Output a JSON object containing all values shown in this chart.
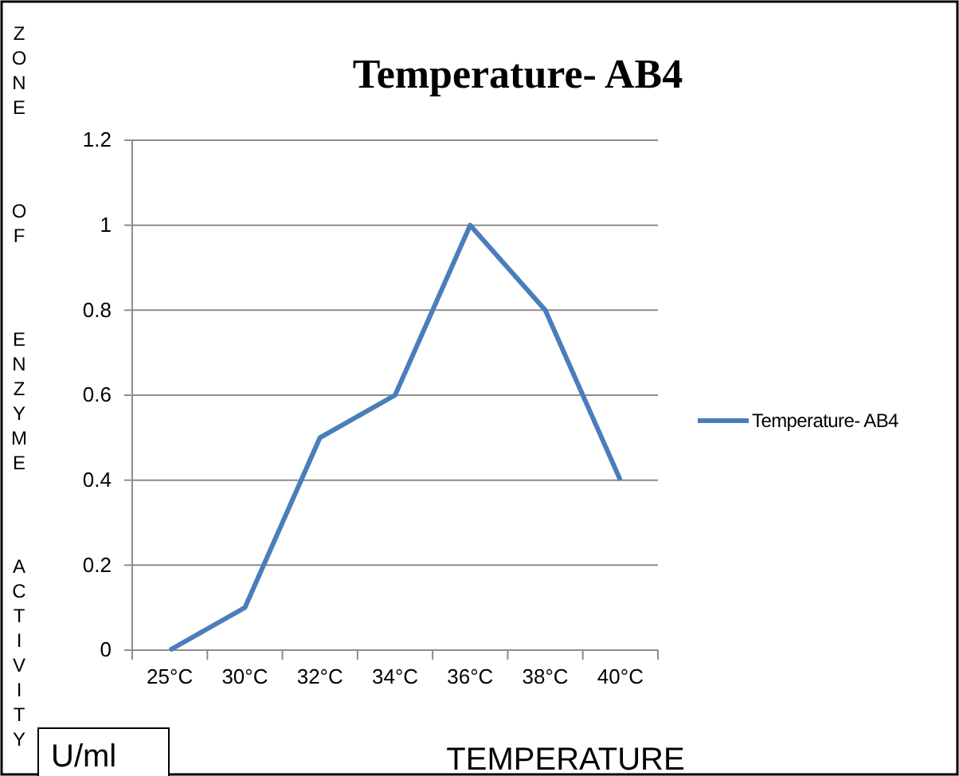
{
  "chart_data": {
    "type": "line",
    "title": "Temperature- AB4",
    "categories": [
      "25°C",
      "30°C",
      "32°C",
      "34°C",
      "36°C",
      "38°C",
      "40°C"
    ],
    "series": [
      {
        "name": "Temperature- AB4",
        "color": "#4a7ebb",
        "values": [
          0,
          0.1,
          0.5,
          0.6,
          1,
          0.8,
          0.4
        ]
      }
    ],
    "ylim": [
      0,
      1.2
    ],
    "yticks": [
      0,
      0.2,
      0.4,
      0.6,
      0.8,
      1,
      1.2
    ],
    "xlabel": "TEMPERATURE",
    "ylabel": "ZONE OF ENZYME ACTIVITY",
    "annotations": [
      "U/ml"
    ],
    "grid": "y",
    "legend": "right",
    "marker": "none",
    "line_style": "solid"
  }
}
